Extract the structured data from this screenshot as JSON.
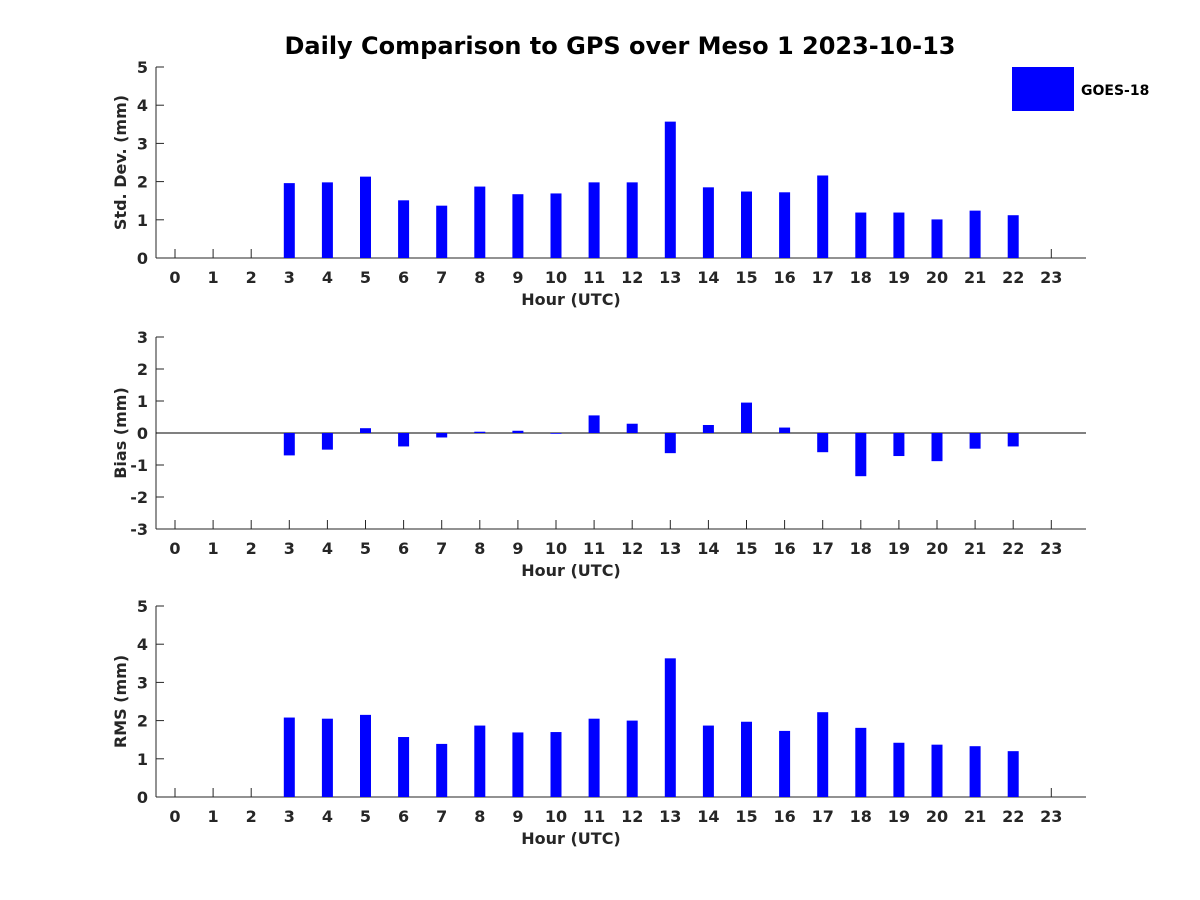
{
  "title": "Daily Comparison to GPS over Meso 1 2023-10-13",
  "colors": {
    "bar": "#0000ff",
    "axis": "#262626",
    "background": "#ffffff"
  },
  "legend": {
    "label": "GOES-18",
    "placement": "top-right"
  },
  "chart_data": [
    {
      "type": "bar",
      "xlabel": "Hour (UTC)",
      "ylabel": "Std. Dev. (mm)",
      "ylim": [
        0,
        5
      ],
      "yticks": [
        0,
        1,
        2,
        3,
        4,
        5
      ],
      "categories": [
        "0",
        "1",
        "2",
        "3",
        "4",
        "5",
        "6",
        "7",
        "8",
        "9",
        "10",
        "11",
        "12",
        "13",
        "14",
        "15",
        "16",
        "17",
        "18",
        "19",
        "20",
        "21",
        "22",
        "23"
      ],
      "series": [
        {
          "name": "GOES-18",
          "values": [
            null,
            null,
            null,
            1.96,
            1.98,
            2.13,
            1.51,
            1.37,
            1.87,
            1.67,
            1.69,
            1.98,
            1.98,
            3.57,
            1.85,
            1.74,
            1.72,
            2.16,
            1.19,
            1.19,
            1.01,
            1.24,
            1.12,
            null
          ]
        }
      ]
    },
    {
      "type": "bar",
      "xlabel": "Hour (UTC)",
      "ylabel": "Bias (mm)",
      "ylim": [
        -3,
        3
      ],
      "yticks": [
        -3,
        -2,
        -1,
        0,
        1,
        2,
        3
      ],
      "categories": [
        "0",
        "1",
        "2",
        "3",
        "4",
        "5",
        "6",
        "7",
        "8",
        "9",
        "10",
        "11",
        "12",
        "13",
        "14",
        "15",
        "16",
        "17",
        "18",
        "19",
        "20",
        "21",
        "22",
        "23"
      ],
      "series": [
        {
          "name": "GOES-18",
          "values": [
            null,
            null,
            null,
            -0.7,
            -0.52,
            0.15,
            -0.42,
            -0.14,
            0.04,
            0.07,
            0,
            0.55,
            0.29,
            -0.63,
            0.25,
            0.95,
            0.17,
            -0.6,
            -1.35,
            -0.72,
            -0.88,
            -0.49,
            -0.42,
            null
          ]
        }
      ]
    },
    {
      "type": "bar",
      "xlabel": "Hour (UTC)",
      "ylabel": "RMS (mm)",
      "ylim": [
        0,
        5
      ],
      "yticks": [
        0,
        1,
        2,
        3,
        4,
        5
      ],
      "categories": [
        "0",
        "1",
        "2",
        "3",
        "4",
        "5",
        "6",
        "7",
        "8",
        "9",
        "10",
        "11",
        "12",
        "13",
        "14",
        "15",
        "16",
        "17",
        "18",
        "19",
        "20",
        "21",
        "22",
        "23"
      ],
      "series": [
        {
          "name": "GOES-18",
          "values": [
            null,
            null,
            null,
            2.08,
            2.05,
            2.15,
            1.57,
            1.39,
            1.87,
            1.69,
            1.7,
            2.05,
            2.0,
            3.63,
            1.87,
            1.97,
            1.73,
            2.22,
            1.81,
            1.42,
            1.37,
            1.33,
            1.2,
            null
          ]
        }
      ]
    }
  ]
}
